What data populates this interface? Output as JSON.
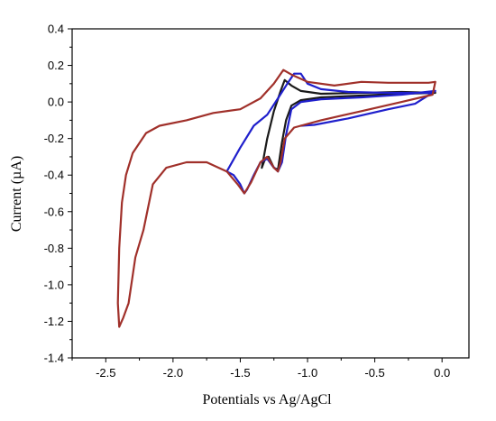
{
  "chart_data": {
    "type": "line",
    "title": "",
    "xlabel": "Potentials vs Ag/AgCl",
    "ylabel": "Current (µA)",
    "xlim": [
      -2.75,
      0.2
    ],
    "ylim": [
      -1.4,
      0.4
    ],
    "x_ticks": [
      -2.5,
      -2.0,
      -1.5,
      -1.0,
      -0.5,
      0.0
    ],
    "x_tick_labels": [
      "-2.5",
      "-2.0",
      "-1.5",
      "-1.0",
      "-0.5",
      "0.0"
    ],
    "y_ticks": [
      0.4,
      0.2,
      0.0,
      -0.2,
      -0.4,
      -0.6,
      -0.8,
      -1.0,
      -1.2,
      -1.4
    ],
    "y_tick_labels": [
      "0.4",
      "0.2",
      "0.0",
      "-0.2",
      "-0.4",
      "-0.6",
      "-0.8",
      "-1.0",
      "-1.2",
      "-1.4"
    ],
    "grid": false,
    "legend": "none",
    "series": [
      {
        "color": "#1a1a1a",
        "points": [
          [
            -0.05,
            0.05
          ],
          [
            -0.3,
            0.045
          ],
          [
            -0.6,
            0.035
          ],
          [
            -0.9,
            0.025
          ],
          [
            -1.05,
            0.01
          ],
          [
            -1.12,
            -0.02
          ],
          [
            -1.16,
            -0.1
          ],
          [
            -1.19,
            -0.22
          ],
          [
            -1.21,
            -0.32
          ],
          [
            -1.22,
            -0.37
          ],
          [
            -1.25,
            -0.36
          ],
          [
            -1.29,
            -0.3
          ],
          [
            -1.32,
            -0.32
          ],
          [
            -1.34,
            -0.36
          ],
          [
            -1.3,
            -0.2
          ],
          [
            -1.25,
            -0.05
          ],
          [
            -1.2,
            0.06
          ],
          [
            -1.17,
            0.12
          ],
          [
            -1.12,
            0.09
          ],
          [
            -1.05,
            0.06
          ],
          [
            -0.9,
            0.045
          ],
          [
            -0.6,
            0.05
          ],
          [
            -0.3,
            0.055
          ],
          [
            -0.05,
            0.05
          ]
        ]
      },
      {
        "color": "#1f1fcc",
        "points": [
          [
            -0.05,
            0.06
          ],
          [
            -0.3,
            0.04
          ],
          [
            -0.6,
            0.025
          ],
          [
            -0.9,
            0.015
          ],
          [
            -1.05,
            0.0
          ],
          [
            -1.12,
            -0.04
          ],
          [
            -1.16,
            -0.18
          ],
          [
            -1.19,
            -0.33
          ],
          [
            -1.22,
            -0.38
          ],
          [
            -1.26,
            -0.35
          ],
          [
            -1.3,
            -0.31
          ],
          [
            -1.35,
            -0.33
          ],
          [
            -1.4,
            -0.4
          ],
          [
            -1.45,
            -0.48
          ],
          [
            -1.47,
            -0.5
          ],
          [
            -1.5,
            -0.45
          ],
          [
            -1.55,
            -0.4
          ],
          [
            -1.6,
            -0.38
          ],
          [
            -1.5,
            -0.25
          ],
          [
            -1.4,
            -0.13
          ],
          [
            -1.3,
            -0.07
          ],
          [
            -1.22,
            0.02
          ],
          [
            -1.15,
            0.1
          ],
          [
            -1.1,
            0.155
          ],
          [
            -1.05,
            0.155
          ],
          [
            -1.0,
            0.1
          ],
          [
            -0.9,
            0.07
          ],
          [
            -0.7,
            0.055
          ],
          [
            -0.4,
            0.05
          ],
          [
            -0.1,
            0.05
          ],
          [
            -0.05,
            0.06
          ],
          [
            -0.2,
            -0.01
          ],
          [
            -0.4,
            -0.04
          ],
          [
            -0.7,
            -0.09
          ],
          [
            -0.95,
            -0.125
          ],
          [
            -1.05,
            -0.13
          ]
        ]
      },
      {
        "color": "#a0302a",
        "points": [
          [
            -0.05,
            0.11
          ],
          [
            -0.07,
            0.04
          ],
          [
            -0.3,
            0.0
          ],
          [
            -0.6,
            -0.05
          ],
          [
            -0.9,
            -0.1
          ],
          [
            -1.1,
            -0.14
          ],
          [
            -1.17,
            -0.2
          ],
          [
            -1.2,
            -0.33
          ],
          [
            -1.22,
            -0.38
          ],
          [
            -1.25,
            -0.36
          ],
          [
            -1.3,
            -0.3
          ],
          [
            -1.35,
            -0.33
          ],
          [
            -1.42,
            -0.44
          ],
          [
            -1.47,
            -0.5
          ],
          [
            -1.52,
            -0.45
          ],
          [
            -1.6,
            -0.38
          ],
          [
            -1.75,
            -0.33
          ],
          [
            -1.9,
            -0.33
          ],
          [
            -2.05,
            -0.36
          ],
          [
            -2.15,
            -0.45
          ],
          [
            -2.22,
            -0.7
          ],
          [
            -2.28,
            -0.85
          ],
          [
            -2.33,
            -1.1
          ],
          [
            -2.37,
            -1.18
          ],
          [
            -2.4,
            -1.23
          ],
          [
            -2.41,
            -1.1
          ],
          [
            -2.4,
            -0.8
          ],
          [
            -2.38,
            -0.55
          ],
          [
            -2.35,
            -0.4
          ],
          [
            -2.3,
            -0.28
          ],
          [
            -2.2,
            -0.17
          ],
          [
            -2.1,
            -0.13
          ],
          [
            -1.9,
            -0.1
          ],
          [
            -1.7,
            -0.06
          ],
          [
            -1.5,
            -0.04
          ],
          [
            -1.35,
            0.02
          ],
          [
            -1.25,
            0.1
          ],
          [
            -1.18,
            0.175
          ],
          [
            -1.12,
            0.15
          ],
          [
            -1.0,
            0.11
          ],
          [
            -0.8,
            0.09
          ],
          [
            -0.6,
            0.11
          ],
          [
            -0.4,
            0.105
          ],
          [
            -0.1,
            0.105
          ],
          [
            -0.05,
            0.11
          ]
        ]
      }
    ]
  }
}
